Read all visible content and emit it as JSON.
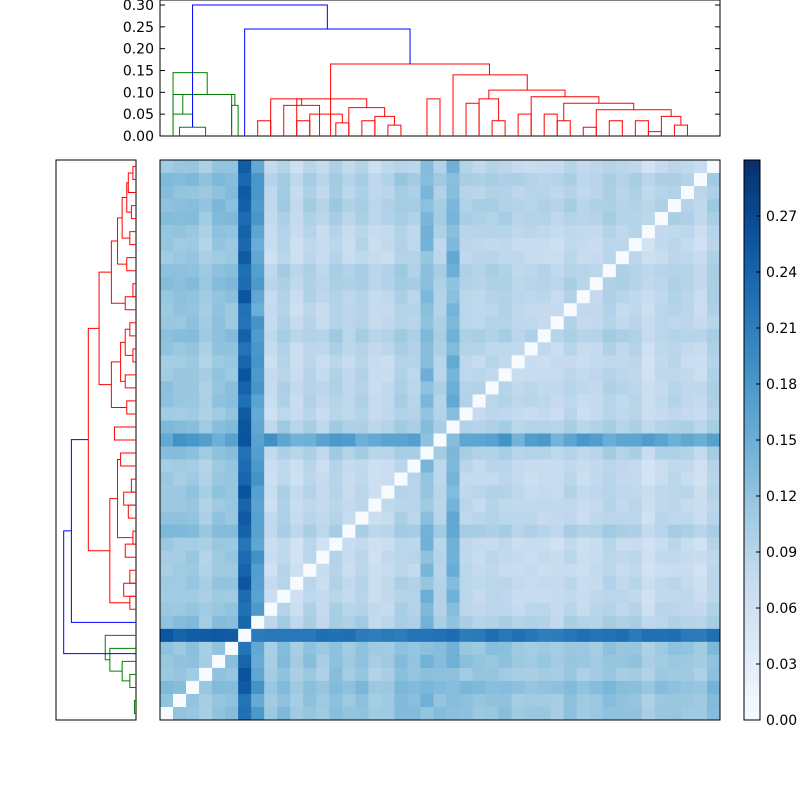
{
  "chart_data": [
    {
      "type": "dendrogram",
      "orientation": "top",
      "ylim": [
        0.0,
        0.3
      ],
      "yticks": [
        "0.00",
        "0.05",
        "0.10",
        "0.15",
        "0.20",
        "0.25",
        "0.30"
      ],
      "leaf_count": 43,
      "colors": {
        "cluster_a": "#008000",
        "cluster_b": "#ff0000",
        "above_threshold": "#0000ff"
      },
      "links": [
        [
          1,
          3,
          0.02,
          "#008000"
        ],
        [
          0.5,
          2,
          0.05,
          "#008000"
        ],
        [
          1.25,
          5,
          0.095,
          "#008000"
        ],
        [
          5,
          5.5,
          0.07,
          "#008000"
        ],
        [
          0.5,
          5.25,
          0.095,
          "#008000"
        ],
        [
          0.5,
          3.125,
          0.145,
          "#008000"
        ],
        [
          7,
          8,
          0.035,
          "#ff0000"
        ],
        [
          10,
          11,
          0.035,
          "#ff0000"
        ],
        [
          13,
          14,
          0.03,
          "#ff0000"
        ],
        [
          11,
          13.5,
          0.05,
          "#ff0000"
        ],
        [
          9,
          11.75,
          0.07,
          "#ff0000"
        ],
        [
          8,
          10.375,
          0.085,
          "#ff0000"
        ],
        [
          15,
          16,
          0.035,
          "#ff0000"
        ],
        [
          17,
          18,
          0.025,
          "#ff0000"
        ],
        [
          16,
          17.5,
          0.045,
          "#ff0000"
        ],
        [
          14,
          16.75,
          0.065,
          "#ff0000"
        ],
        [
          10,
          15.375,
          0.085,
          "#ff0000"
        ],
        [
          20,
          21,
          0.085,
          "#ff0000"
        ],
        [
          23,
          24,
          0.075,
          "#ff0000"
        ],
        [
          25,
          26,
          0.035,
          "#ff0000"
        ],
        [
          24,
          25.5,
          0.085,
          "#ff0000"
        ],
        [
          27,
          28,
          0.05,
          "#ff0000"
        ],
        [
          29,
          30,
          0.05,
          "#ff0000"
        ],
        [
          30,
          31,
          0.035,
          "#ff0000"
        ],
        [
          32,
          33,
          0.02,
          "#ff0000"
        ],
        [
          34,
          35,
          0.035,
          "#ff0000"
        ],
        [
          36,
          37,
          0.035,
          "#ff0000"
        ],
        [
          37,
          38,
          0.01,
          "#ff0000"
        ],
        [
          39,
          40,
          0.025,
          "#ff0000"
        ],
        [
          38,
          39.5,
          0.045,
          "#ff0000"
        ],
        [
          33,
          38.75,
          0.06,
          "#ff0000"
        ],
        [
          30.5,
          35.875,
          0.075,
          "#ff0000"
        ],
        [
          28,
          33.2,
          0.09,
          "#ff0000"
        ],
        [
          24.75,
          30.6,
          0.105,
          "#ff0000"
        ],
        [
          22,
          27.7,
          0.14,
          "#ff0000"
        ],
        [
          12.6,
          24.8,
          0.165,
          "#ff0000"
        ],
        [
          6,
          18.7,
          0.245,
          "#0000ff"
        ],
        [
          2,
          12.35,
          0.3,
          "#0000ff"
        ]
      ]
    },
    {
      "type": "dendrogram",
      "orientation": "left",
      "leaf_count": 43,
      "colors": {
        "cluster_a": "#008000",
        "cluster_b": "#ff0000",
        "above_threshold": "#0000ff"
      },
      "links": [
        [
          41,
          42,
          0.005,
          "#008000"
        ],
        [
          39,
          40,
          0.02,
          "#008000"
        ],
        [
          38,
          39.5,
          0.045,
          "#008000"
        ],
        [
          37,
          38.75,
          0.085,
          "#008000"
        ],
        [
          36,
          37.875,
          0.1,
          "#008000"
        ],
        [
          0,
          1,
          0.01,
          "#ff0000"
        ],
        [
          0.5,
          2,
          0.025,
          "#ff0000"
        ],
        [
          3,
          4,
          0.015,
          "#ff0000"
        ],
        [
          1.25,
          3.5,
          0.03,
          "#ff0000"
        ],
        [
          5,
          6,
          0.02,
          "#ff0000"
        ],
        [
          2.375,
          5.5,
          0.045,
          "#ff0000"
        ],
        [
          7,
          8,
          0.03,
          "#ff0000"
        ],
        [
          3.94,
          7.5,
          0.06,
          "#ff0000"
        ],
        [
          9,
          10,
          0.01,
          "#ff0000"
        ],
        [
          10,
          11,
          0.035,
          "#ff0000"
        ],
        [
          5.72,
          10.5,
          0.08,
          "#ff0000"
        ],
        [
          12,
          13,
          0.02,
          "#ff0000"
        ],
        [
          14,
          15,
          0.01,
          "#ff0000"
        ],
        [
          12.5,
          14.5,
          0.035,
          "#ff0000"
        ],
        [
          16,
          17,
          0.035,
          "#ff0000"
        ],
        [
          13.5,
          16.5,
          0.05,
          "#ff0000"
        ],
        [
          18,
          19,
          0.03,
          "#ff0000"
        ],
        [
          15,
          18.5,
          0.08,
          "#ff0000"
        ],
        [
          20,
          21,
          0.07,
          "#ff0000"
        ],
        [
          8.11,
          16.75,
          0.12,
          "#ff0000"
        ],
        [
          22,
          23,
          0.05,
          "#ff0000"
        ],
        [
          24,
          25,
          0.015,
          "#ff0000"
        ],
        [
          25,
          26,
          0.04,
          "#ff0000"
        ],
        [
          26,
          27,
          0.025,
          "#ff0000"
        ],
        [
          28,
          29,
          0.01,
          "#ff0000"
        ],
        [
          29,
          30,
          0.035,
          "#ff0000"
        ],
        [
          22.5,
          28.5,
          0.06,
          "#ff0000"
        ],
        [
          31,
          32,
          0.02,
          "#ff0000"
        ],
        [
          32,
          33,
          0.04,
          "#ff0000"
        ],
        [
          33,
          34,
          0.02,
          "#ff0000"
        ],
        [
          25.5,
          33.5,
          0.085,
          "#ff0000"
        ],
        [
          12.43,
          29.5,
          0.155,
          "#ff0000"
        ],
        [
          20.97,
          35,
          0.21,
          "#0000ff"
        ],
        [
          27.98,
          37.4,
          0.235,
          "#0000ff"
        ]
      ]
    },
    {
      "type": "heatmap",
      "rows": 43,
      "cols": 43,
      "colorscale": "Blues",
      "zlim": [
        0.0,
        0.3
      ],
      "colorbar_ticks": [
        "0.00",
        "0.03",
        "0.06",
        "0.09",
        "0.12",
        "0.15",
        "0.18",
        "0.21",
        "0.24",
        "0.27"
      ],
      "bands": [
        {
          "index": 6,
          "value": 0.21
        },
        {
          "index": 7,
          "value": 0.19
        },
        {
          "index": 20,
          "value": 0.15
        },
        {
          "index": 22,
          "value": 0.16
        }
      ],
      "strong_row": {
        "index": 36,
        "value": 0.23
      },
      "strong_col": {
        "index": 6,
        "value": 0.26
      },
      "base_range": [
        0.05,
        0.12
      ]
    }
  ]
}
